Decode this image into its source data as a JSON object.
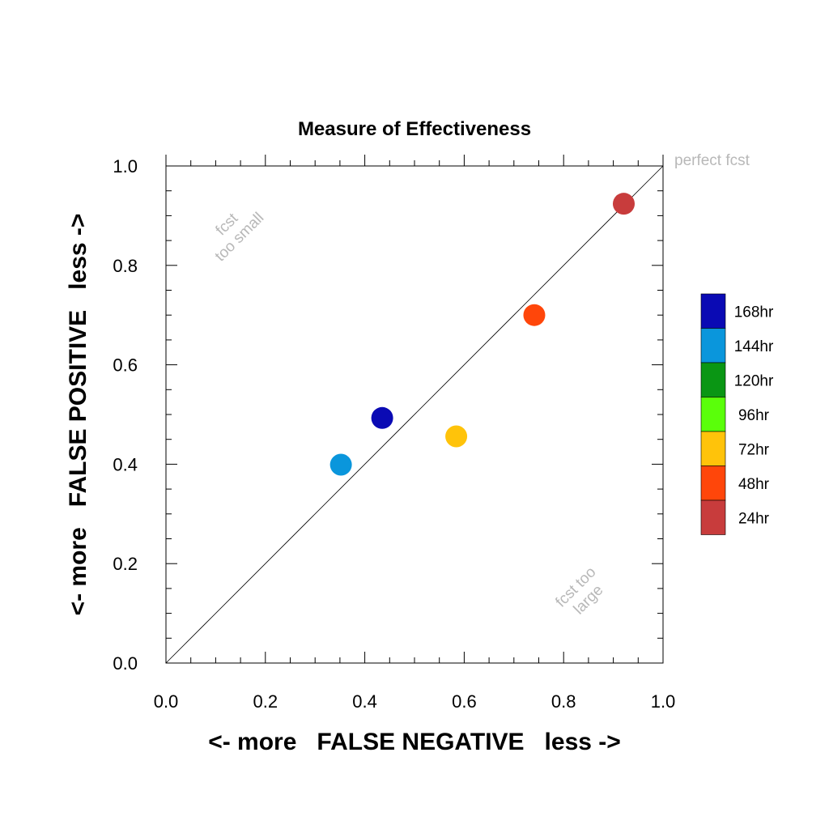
{
  "chart_data": {
    "type": "scatter",
    "title": "Measure of Effectiveness",
    "xlabel": "<- more   FALSE NEGATIVE   less ->",
    "ylabel": "<- more   FALSE POSITIVE   less ->",
    "xlim": [
      0.0,
      1.0
    ],
    "ylim": [
      0.0,
      1.0
    ],
    "xticks": [
      "0.0",
      "0.2",
      "0.4",
      "0.6",
      "0.8",
      "1.0"
    ],
    "yticks": [
      "0.0",
      "0.2",
      "0.4",
      "0.6",
      "0.8",
      "1.0"
    ],
    "grid": false,
    "legend_position": "right",
    "reference_line": {
      "from": [
        0.0,
        0.0
      ],
      "to": [
        1.0,
        1.0
      ],
      "label": "perfect fcst"
    },
    "annotations": {
      "upper_left": [
        "fcst",
        "too small"
      ],
      "lower_right": [
        "fcst too",
        "large"
      ]
    },
    "legend": [
      {
        "label": "168hr",
        "color": "#0a0ab4"
      },
      {
        "label": "144hr",
        "color": "#0a96dc"
      },
      {
        "label": "120hr",
        "color": "#0a9614"
      },
      {
        "label": "96hr",
        "color": "#5aff0a"
      },
      {
        "label": "72hr",
        "color": "#ffc30a"
      },
      {
        "label": "48hr",
        "color": "#ff460a"
      },
      {
        "label": "24hr",
        "color": "#c83c3c"
      }
    ],
    "points": [
      {
        "lead": "168hr",
        "x": 0.435,
        "y": 0.493,
        "color": "#0a0ab4"
      },
      {
        "lead": "144hr",
        "x": 0.352,
        "y": 0.399,
        "color": "#0a96dc"
      },
      {
        "lead": "72hr",
        "x": 0.584,
        "y": 0.456,
        "color": "#ffc30a"
      },
      {
        "lead": "48hr",
        "x": 0.741,
        "y": 0.7,
        "color": "#ff460a"
      },
      {
        "lead": "24hr",
        "x": 0.921,
        "y": 0.924,
        "color": "#c83c3c"
      }
    ]
  }
}
